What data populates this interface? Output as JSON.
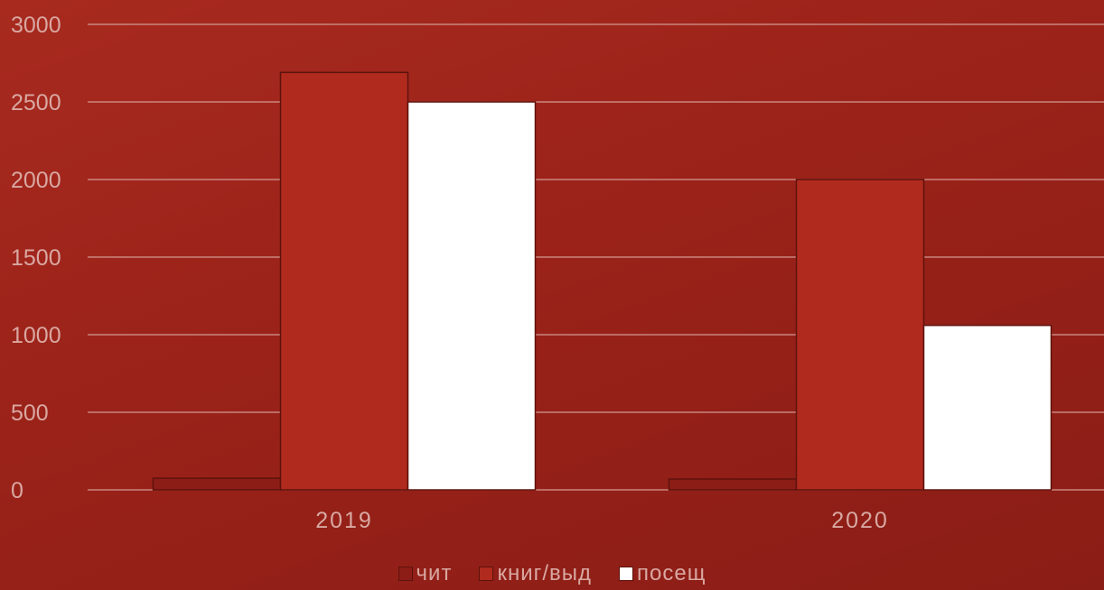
{
  "chart_data": {
    "type": "bar",
    "categories": [
      "2019",
      "2020"
    ],
    "series": [
      {
        "name": "чит",
        "values": [
          75,
          70
        ],
        "color": "#8c1d16"
      },
      {
        "name": "книг/выд",
        "values": [
          2690,
          2000
        ],
        "color": "#b02a1e"
      },
      {
        "name": "посещ",
        "values": [
          2500,
          1060
        ],
        "color": "#ffffff"
      }
    ],
    "ylim": [
      0,
      3000
    ],
    "yticks": [
      0,
      500,
      1000,
      1500,
      2000,
      2500,
      3000
    ],
    "grid": true,
    "legend_position": "bottom",
    "title": "",
    "xlabel": "",
    "ylabel": ""
  },
  "colors": {
    "gridline": "#d49a93",
    "tick_text": "#d9a8a2",
    "bar_stroke": "#5e120c"
  }
}
